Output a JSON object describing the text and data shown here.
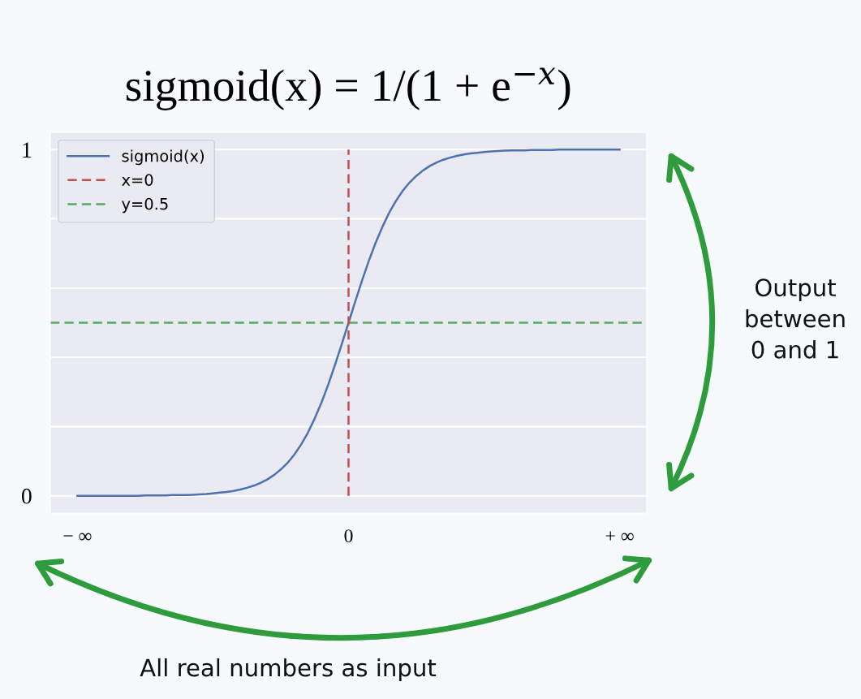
{
  "chart_data": {
    "type": "line",
    "title": "sigmoid(x) = 1/(1 + e$^{−x}$)",
    "categories": [
      "− ∞",
      null,
      null,
      null,
      null,
      null,
      null,
      null,
      null,
      null,
      null,
      null,
      null,
      null,
      null,
      null,
      null,
      null,
      null,
      null,
      null,
      null,
      null,
      null,
      null,
      null,
      null,
      null,
      null,
      null,
      null,
      null,
      null,
      null,
      null,
      null,
      null,
      null,
      null,
      null,
      "0",
      null,
      null,
      null,
      null,
      null,
      null,
      null,
      null,
      null,
      null,
      null,
      null,
      null,
      null,
      null,
      null,
      null,
      null,
      null,
      null,
      null,
      null,
      null,
      null,
      null,
      null,
      null,
      null,
      null,
      null,
      null,
      null,
      null,
      null,
      null,
      null,
      null,
      null,
      null,
      "+ ∞"
    ],
    "series": [
      {
        "name": "sigmoid(x)",
        "color": "#4c72b0",
        "line_style": "solid",
        "values": [
          0.0,
          0.0,
          0.0,
          0.0,
          0.0,
          0.0,
          0.0,
          0.0,
          0.0,
          0.0,
          0.001,
          0.001,
          0.001,
          0.001,
          0.002,
          0.002,
          0.002,
          0.003,
          0.004,
          0.005,
          0.007,
          0.009,
          0.011,
          0.014,
          0.018,
          0.023,
          0.029,
          0.037,
          0.047,
          0.06,
          0.076,
          0.095,
          0.119,
          0.148,
          0.182,
          0.223,
          0.269,
          0.321,
          0.378,
          0.438,
          0.5,
          0.562,
          0.622,
          0.679,
          0.731,
          0.777,
          0.818,
          0.852,
          0.881,
          0.905,
          0.924,
          0.94,
          0.953,
          0.963,
          0.971,
          0.977,
          0.982,
          0.986,
          0.989,
          0.991,
          0.993,
          0.995,
          0.996,
          0.997,
          0.998,
          0.998,
          0.998,
          0.999,
          0.999,
          0.999,
          0.999,
          1.0,
          1.0,
          1.0,
          1.0,
          1.0,
          1.0,
          1.0,
          1.0,
          1.0,
          1.0
        ]
      },
      {
        "name": "x=0",
        "color": "#c44e52",
        "line_style": "dashed",
        "x": [
          "0",
          "0"
        ],
        "values": [
          0,
          1
        ]
      }
    ],
    "ref_lines": [
      {
        "axis": "y",
        "value": 0.5,
        "label": "y=0.5",
        "color": "#55a868",
        "line_style": "dashed"
      }
    ],
    "ylim": [
      -0.05,
      1.05
    ],
    "yticks": [
      0,
      {
        "value": 0.2,
        "label": null
      },
      {
        "value": 0.4,
        "label": null
      },
      {
        "value": 0.6,
        "label": null
      },
      {
        "value": 0.8,
        "label": null
      },
      1
    ],
    "grid": true,
    "legend": "top left",
    "annotations": [
      "Output\nbetween\n0 and 1",
      "All real numbers as input"
    ]
  }
}
